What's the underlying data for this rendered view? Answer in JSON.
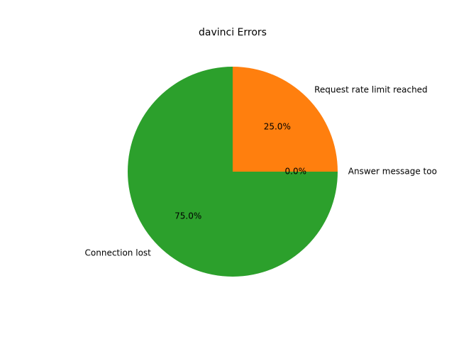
{
  "chart_data": {
    "type": "pie",
    "title": "davinci Errors",
    "labels": [
      "Answer message too",
      "Request rate limit reached",
      "Connection lost"
    ],
    "values": [
      0.0,
      25.0,
      75.0
    ],
    "percent_labels": [
      "0.0%",
      "25.0%",
      "75.0%"
    ],
    "colors": [
      "#1f77b4",
      "#ff7f0e",
      "#2ca02c"
    ],
    "start_angle_deg": 0,
    "direction": "counterclockwise",
    "legend": "none"
  }
}
